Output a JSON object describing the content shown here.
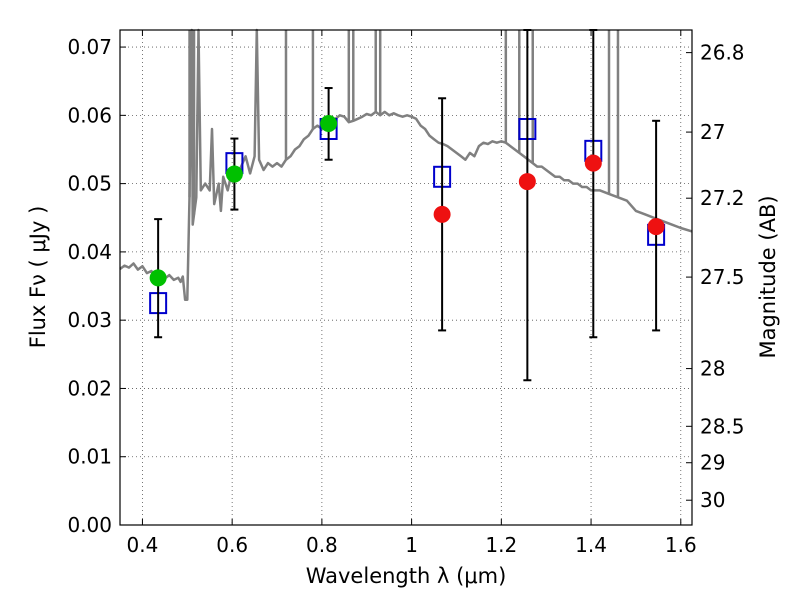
{
  "chart_data": {
    "type": "scatter",
    "title": "",
    "xlabel": "Wavelength  λ (μm)",
    "ylabel": "Flux  Fν  ( μJy )",
    "y2label": "Magnitude (AB)",
    "xlim": [
      0.35,
      1.625
    ],
    "ylim": [
      0.0,
      0.0725
    ],
    "grid": true,
    "x_ticks": [
      0.4,
      0.6,
      0.8,
      1.0,
      1.2,
      1.4,
      1.6
    ],
    "x_tick_labels": [
      "0.4",
      "0.6",
      "0.8",
      "1",
      "1.2",
      "1.4",
      "1.6"
    ],
    "y_ticks": [
      0.0,
      0.01,
      0.02,
      0.03,
      0.04,
      0.05,
      0.06,
      0.07
    ],
    "y_tick_labels": [
      "0.00",
      "0.01",
      "0.02",
      "0.03",
      "0.04",
      "0.05",
      "0.06",
      "0.07"
    ],
    "mag_ticks": [
      26.8,
      27,
      27.2,
      27.5,
      28,
      28.5,
      29,
      30
    ],
    "mag_tick_labels": [
      "26.8",
      "27",
      "27.2",
      "27.5",
      "28",
      "28.5",
      "29",
      "30"
    ],
    "colors": {
      "sed": "#808080",
      "model": "#0000cc",
      "optical": "#00c000",
      "infrared": "#ee1111",
      "errorbar": "#000000"
    },
    "sed_model": [
      [
        0.35,
        0.0375
      ],
      [
        0.36,
        0.038
      ],
      [
        0.37,
        0.0377
      ],
      [
        0.38,
        0.0383
      ],
      [
        0.39,
        0.0374
      ],
      [
        0.4,
        0.0379
      ],
      [
        0.41,
        0.0369
      ],
      [
        0.42,
        0.0372
      ],
      [
        0.43,
        0.0364
      ],
      [
        0.44,
        0.0366
      ],
      [
        0.45,
        0.0361
      ],
      [
        0.46,
        0.0366
      ],
      [
        0.47,
        0.0359
      ],
      [
        0.48,
        0.0362
      ],
      [
        0.485,
        0.0356
      ],
      [
        0.49,
        0.0364
      ],
      [
        0.495,
        0.033
      ],
      [
        0.5,
        0.033
      ],
      [
        0.505,
        0.048
      ],
      [
        0.51,
        0.073
      ],
      [
        0.512,
        0.044
      ],
      [
        0.52,
        0.048
      ],
      [
        0.525,
        0.073
      ],
      [
        0.53,
        0.049
      ],
      [
        0.54,
        0.05
      ],
      [
        0.55,
        0.049
      ],
      [
        0.555,
        0.058
      ],
      [
        0.56,
        0.047
      ],
      [
        0.57,
        0.05
      ],
      [
        0.575,
        0.046
      ],
      [
        0.58,
        0.051
      ],
      [
        0.59,
        0.049
      ],
      [
        0.6,
        0.052
      ],
      [
        0.61,
        0.051
      ],
      [
        0.62,
        0.0525
      ],
      [
        0.63,
        0.054
      ],
      [
        0.64,
        0.0515
      ],
      [
        0.65,
        0.054
      ],
      [
        0.655,
        0.073
      ],
      [
        0.66,
        0.0535
      ],
      [
        0.67,
        0.052
      ],
      [
        0.68,
        0.053
      ],
      [
        0.69,
        0.0525
      ],
      [
        0.7,
        0.053
      ],
      [
        0.71,
        0.0525
      ],
      [
        0.72,
        0.0535
      ],
      [
        0.73,
        0.054
      ],
      [
        0.74,
        0.055
      ],
      [
        0.75,
        0.0555
      ],
      [
        0.76,
        0.0565
      ],
      [
        0.77,
        0.057
      ],
      [
        0.78,
        0.058
      ],
      [
        0.79,
        0.0585
      ],
      [
        0.8,
        0.058
      ],
      [
        0.81,
        0.059
      ],
      [
        0.82,
        0.0585
      ],
      [
        0.83,
        0.0595
      ],
      [
        0.84,
        0.06
      ],
      [
        0.85,
        0.0598
      ],
      [
        0.86,
        0.059
      ],
      [
        0.87,
        0.0592
      ],
      [
        0.88,
        0.0595
      ],
      [
        0.89,
        0.0598
      ],
      [
        0.9,
        0.0602
      ],
      [
        0.91,
        0.06
      ],
      [
        0.92,
        0.0605
      ],
      [
        0.93,
        0.06
      ],
      [
        0.94,
        0.0605
      ],
      [
        0.95,
        0.06
      ],
      [
        0.96,
        0.0603
      ],
      [
        0.97,
        0.06
      ],
      [
        0.98,
        0.0598
      ],
      [
        0.99,
        0.06
      ],
      [
        1.0,
        0.0598
      ],
      [
        1.01,
        0.0595
      ],
      [
        1.02,
        0.0585
      ],
      [
        1.03,
        0.058
      ],
      [
        1.04,
        0.057
      ],
      [
        1.05,
        0.0565
      ],
      [
        1.06,
        0.056
      ],
      [
        1.07,
        0.0558
      ],
      [
        1.08,
        0.0555
      ],
      [
        1.09,
        0.055
      ],
      [
        1.1,
        0.0545
      ],
      [
        1.11,
        0.054
      ],
      [
        1.12,
        0.0535
      ],
      [
        1.13,
        0.0545
      ],
      [
        1.14,
        0.054
      ],
      [
        1.15,
        0.0555
      ],
      [
        1.16,
        0.056
      ],
      [
        1.17,
        0.0558
      ],
      [
        1.18,
        0.0562
      ],
      [
        1.19,
        0.056
      ],
      [
        1.2,
        0.0562
      ],
      [
        1.21,
        0.056
      ],
      [
        1.22,
        0.0555
      ],
      [
        1.23,
        0.055
      ],
      [
        1.24,
        0.0545
      ],
      [
        1.25,
        0.054
      ],
      [
        1.26,
        0.0535
      ],
      [
        1.27,
        0.053
      ],
      [
        1.28,
        0.0525
      ],
      [
        1.29,
        0.0525
      ],
      [
        1.3,
        0.052
      ],
      [
        1.31,
        0.0515
      ],
      [
        1.32,
        0.051
      ],
      [
        1.33,
        0.051
      ],
      [
        1.34,
        0.0505
      ],
      [
        1.35,
        0.0505
      ],
      [
        1.36,
        0.05
      ],
      [
        1.37,
        0.05
      ],
      [
        1.38,
        0.0495
      ],
      [
        1.39,
        0.0495
      ],
      [
        1.4,
        0.049
      ],
      [
        1.42,
        0.049
      ],
      [
        1.44,
        0.0485
      ],
      [
        1.46,
        0.048
      ],
      [
        1.48,
        0.0475
      ],
      [
        1.5,
        0.046
      ],
      [
        1.52,
        0.0455
      ],
      [
        1.54,
        0.045
      ],
      [
        1.56,
        0.0445
      ],
      [
        1.58,
        0.044
      ],
      [
        1.6,
        0.0435
      ],
      [
        1.625,
        0.043
      ]
    ],
    "emission_lines": [
      [
        0.505,
        0.0725
      ],
      [
        0.515,
        0.0725
      ],
      [
        0.525,
        0.0725
      ],
      [
        0.655,
        0.0725
      ],
      [
        0.72,
        0.0725
      ],
      [
        0.78,
        0.0725
      ],
      [
        0.86,
        0.0725
      ],
      [
        0.87,
        0.0725
      ],
      [
        0.92,
        0.0725
      ],
      [
        0.93,
        0.0725
      ],
      [
        1.21,
        0.0725
      ],
      [
        1.24,
        0.0725
      ],
      [
        1.27,
        0.0725
      ],
      [
        1.44,
        0.0725
      ],
      [
        1.46,
        0.0725
      ]
    ],
    "model_points": [
      {
        "x": 0.435,
        "y": 0.0325
      },
      {
        "x": 0.605,
        "y": 0.053
      },
      {
        "x": 0.815,
        "y": 0.058
      },
      {
        "x": 1.068,
        "y": 0.051
      },
      {
        "x": 1.258,
        "y": 0.058
      },
      {
        "x": 1.405,
        "y": 0.0548
      },
      {
        "x": 1.545,
        "y": 0.0425
      }
    ],
    "observed": [
      {
        "x": 0.435,
        "y": 0.0362,
        "err_low": 0.0275,
        "err_high": 0.0448,
        "band": "optical"
      },
      {
        "x": 0.605,
        "y": 0.0514,
        "err_low": 0.0462,
        "err_high": 0.0566,
        "band": "optical"
      },
      {
        "x": 0.815,
        "y": 0.0588,
        "err_low": 0.0535,
        "err_high": 0.064,
        "band": "optical"
      },
      {
        "x": 1.068,
        "y": 0.0455,
        "err_low": 0.0285,
        "err_high": 0.0625,
        "band": "infrared"
      },
      {
        "x": 1.258,
        "y": 0.0503,
        "err_low": 0.0212,
        "err_high": 0.0725,
        "band": "infrared"
      },
      {
        "x": 1.405,
        "y": 0.053,
        "err_low": 0.0275,
        "err_high": 0.0725,
        "band": "infrared"
      },
      {
        "x": 1.545,
        "y": 0.0437,
        "err_low": 0.0285,
        "err_high": 0.0592,
        "band": "infrared"
      }
    ]
  }
}
